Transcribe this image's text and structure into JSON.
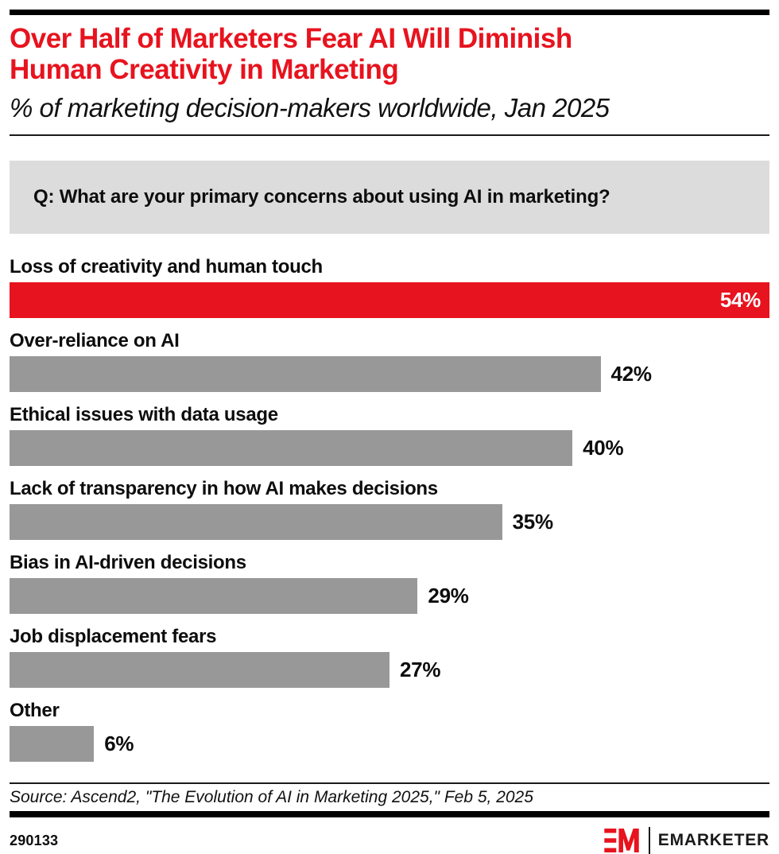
{
  "header": {
    "title_line1": "Over Half of Marketers Fear AI Will Diminish",
    "title_line2": "Human Creativity in Marketing",
    "subtitle": "% of marketing decision-makers worldwide, Jan 2025"
  },
  "question": "Q: What are your primary concerns about using AI in marketing?",
  "chart_data": {
    "type": "bar",
    "orientation": "horizontal",
    "title": "Over Half of Marketers Fear AI Will Diminish Human Creativity in Marketing",
    "subtitle": "% of marketing decision-makers worldwide, Jan 2025",
    "categories": [
      "Loss of creativity and human touch",
      "Over-reliance on AI",
      "Ethical issues with data usage",
      "Lack of transparency in how AI makes decisions",
      "Bias in AI-driven decisions",
      "Job displacement fears",
      "Other"
    ],
    "values": [
      54,
      42,
      40,
      35,
      29,
      27,
      6
    ],
    "value_labels": [
      "54%",
      "42%",
      "40%",
      "35%",
      "29%",
      "27%",
      "6%"
    ],
    "unit": "%",
    "xlim": [
      0,
      54
    ],
    "highlight_index": 0,
    "highlight_color": "#e7131e",
    "bar_color": "#989898",
    "grid": false,
    "legend": false
  },
  "footer": {
    "source": "Source: Ascend2, \"The Evolution of AI in Marketing 2025,\" Feb 5, 2025",
    "chart_id": "290133",
    "brand_name": "EMARKETER",
    "brand_red": "#e7131e"
  }
}
